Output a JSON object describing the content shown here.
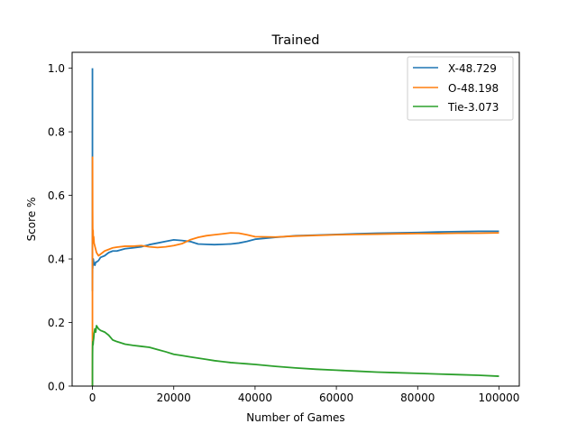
{
  "chart_data": {
    "type": "line",
    "title": "Trained",
    "xlabel": "Number of Games",
    "ylabel": "Score %",
    "xlim": [
      -5000,
      105000
    ],
    "ylim": [
      0.0,
      1.05
    ],
    "xticks": [
      0,
      20000,
      40000,
      60000,
      80000,
      100000
    ],
    "xtick_labels": [
      "0",
      "20000",
      "40000",
      "60000",
      "80000",
      "100000"
    ],
    "yticks": [
      0.0,
      0.2,
      0.4,
      0.6,
      0.8,
      1.0
    ],
    "ytick_labels": [
      "0.0",
      "0.2",
      "0.4",
      "0.6",
      "0.8",
      "1.0"
    ],
    "grid": false,
    "legend_position": "top-right",
    "series": [
      {
        "name": "X-48.729",
        "color": "#1f77b4",
        "x": [
          1,
          2,
          5,
          10,
          20,
          40,
          60,
          100,
          150,
          200,
          300,
          400,
          600,
          800,
          1000,
          1500,
          2000,
          3000,
          4000,
          5000,
          6000,
          8000,
          10000,
          12000,
          14000,
          16000,
          18000,
          20000,
          22000,
          24000,
          26000,
          28000,
          30000,
          32000,
          34000,
          36000,
          38000,
          40000,
          45000,
          50000,
          55000,
          60000,
          65000,
          70000,
          75000,
          80000,
          85000,
          90000,
          95000,
          100000
        ],
        "y": [
          1.0,
          0.5,
          0.6,
          0.3,
          0.35,
          0.4,
          0.37,
          0.39,
          0.38,
          0.4,
          0.39,
          0.385,
          0.38,
          0.39,
          0.39,
          0.395,
          0.405,
          0.41,
          0.42,
          0.425,
          0.425,
          0.432,
          0.435,
          0.438,
          0.445,
          0.45,
          0.455,
          0.46,
          0.458,
          0.455,
          0.447,
          0.446,
          0.445,
          0.446,
          0.447,
          0.45,
          0.455,
          0.462,
          0.468,
          0.473,
          0.475,
          0.477,
          0.479,
          0.481,
          0.482,
          0.483,
          0.485,
          0.486,
          0.487,
          0.487
        ]
      },
      {
        "name": "O-48.198",
        "color": "#ff7f0e",
        "x": [
          1,
          2,
          5,
          10,
          20,
          40,
          60,
          100,
          150,
          200,
          300,
          400,
          600,
          800,
          1000,
          1500,
          2000,
          3000,
          4000,
          5000,
          6000,
          8000,
          10000,
          12000,
          14000,
          16000,
          18000,
          20000,
          22000,
          24000,
          26000,
          28000,
          30000,
          32000,
          34000,
          36000,
          38000,
          40000,
          45000,
          50000,
          55000,
          60000,
          65000,
          70000,
          75000,
          80000,
          85000,
          90000,
          95000,
          100000
        ],
        "y": [
          0.0,
          0.5,
          0.4,
          0.65,
          0.72,
          0.55,
          0.5,
          0.47,
          0.49,
          0.46,
          0.47,
          0.45,
          0.44,
          0.43,
          0.42,
          0.41,
          0.415,
          0.425,
          0.43,
          0.435,
          0.437,
          0.44,
          0.44,
          0.442,
          0.438,
          0.436,
          0.438,
          0.442,
          0.448,
          0.46,
          0.468,
          0.473,
          0.476,
          0.479,
          0.482,
          0.481,
          0.476,
          0.47,
          0.469,
          0.472,
          0.474,
          0.476,
          0.477,
          0.478,
          0.479,
          0.48,
          0.48,
          0.481,
          0.481,
          0.482
        ]
      },
      {
        "name": "Tie-3.073",
        "color": "#2ca02c",
        "x": [
          1,
          2,
          5,
          10,
          20,
          40,
          60,
          100,
          150,
          200,
          300,
          400,
          600,
          800,
          1000,
          1500,
          2000,
          3000,
          4000,
          5000,
          6000,
          8000,
          10000,
          12000,
          14000,
          16000,
          18000,
          20000,
          22000,
          24000,
          26000,
          28000,
          30000,
          32000,
          34000,
          36000,
          38000,
          40000,
          45000,
          50000,
          55000,
          60000,
          65000,
          70000,
          75000,
          80000,
          85000,
          90000,
          95000,
          100000
        ],
        "y": [
          0.0,
          0.0,
          0.0,
          0.05,
          0.1,
          0.12,
          0.13,
          0.14,
          0.13,
          0.14,
          0.15,
          0.165,
          0.18,
          0.17,
          0.19,
          0.18,
          0.175,
          0.17,
          0.16,
          0.145,
          0.14,
          0.132,
          0.128,
          0.125,
          0.122,
          0.115,
          0.108,
          0.1,
          0.096,
          0.092,
          0.088,
          0.084,
          0.08,
          0.077,
          0.074,
          0.072,
          0.07,
          0.068,
          0.062,
          0.057,
          0.053,
          0.05,
          0.047,
          0.044,
          0.042,
          0.04,
          0.038,
          0.036,
          0.034,
          0.031
        ]
      }
    ]
  }
}
